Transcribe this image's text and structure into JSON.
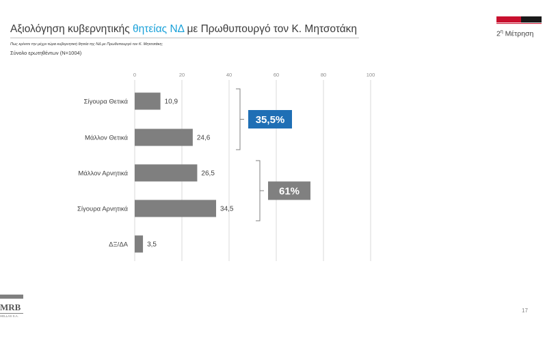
{
  "header": {
    "title_before": "Αξιολόγηση κυβερνητικής ",
    "title_highlight": "θητείας ΝΔ",
    "title_after": " με Πρωθυπουργό τον Κ. Μητσοτάκη",
    "measurement_number": "2",
    "measurement_suffix": "η",
    "measurement_label": " Μέτρηση",
    "question": "Πως κρίνετε την μέχρι τώρα κυβερνητική θητεία της ΝΔ με Πρωθυπουργό τον Κ. Μητσοτάκη;",
    "base": "Σύνολο ερωτηθέντων (N=1004)"
  },
  "footer": {
    "logo_text": "MRB",
    "logo_subtext": "HELLAS S.A.",
    "page_number": "17"
  },
  "colors": {
    "bar": "#7f7f7f",
    "positive_box": "#1f6fb5",
    "negative_box": "#808080",
    "title_highlight": "#1aa1d9",
    "brand_red": "#c8102e"
  },
  "chart_data": {
    "type": "bar",
    "orientation": "horizontal",
    "categories": [
      "Σίγουρα Θετικά",
      "Μάλλον Θετικά",
      "Μάλλον Αρνητικά",
      "Σίγουρα Αρνητικά",
      "ΔΞ/ΔΑ"
    ],
    "values": [
      10.9,
      24.6,
      26.5,
      34.5,
      3.5
    ],
    "value_labels": [
      "10,9",
      "24,6",
      "26,5",
      "34,5",
      "3,5"
    ],
    "xlim": [
      0,
      100
    ],
    "x_ticks": [
      0,
      20,
      40,
      60,
      80,
      100
    ],
    "x_tick_labels": [
      "0",
      "20",
      "40",
      "60",
      "80",
      "100"
    ],
    "grid": true,
    "groups": [
      {
        "label": "35,5%",
        "from": 0,
        "to": 1,
        "color": "#1f6fb5"
      },
      {
        "label": "61%",
        "from": 2,
        "to": 3,
        "color": "#808080"
      }
    ]
  }
}
